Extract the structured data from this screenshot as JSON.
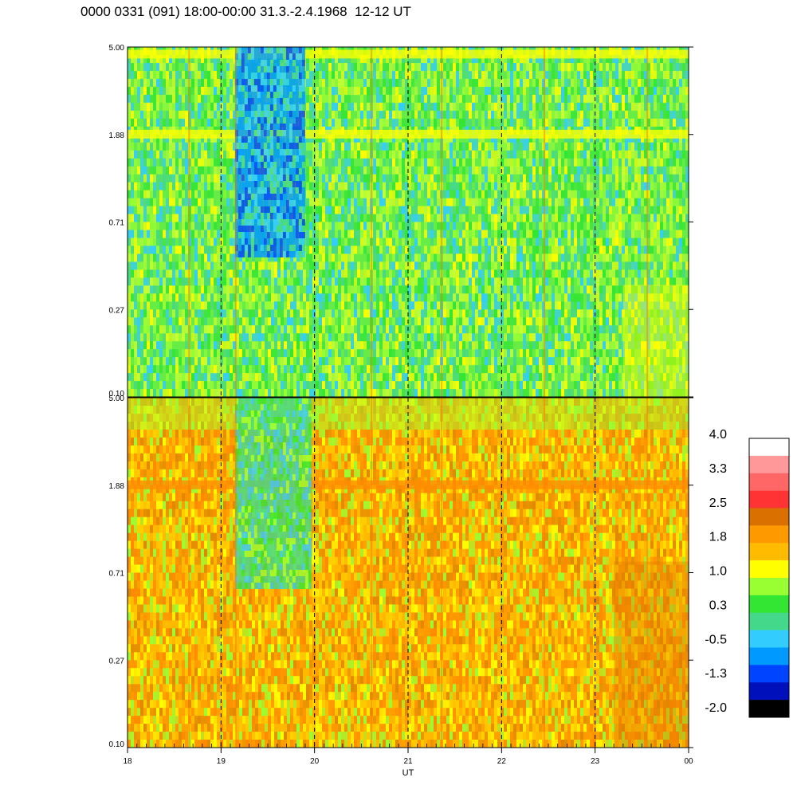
{
  "title": "0000 0331 (091) 18:00-00:00 31.3.-2.4.1968  12-12 UT",
  "chart_data": {
    "type": "heatmap",
    "title": "0000 0331 (091) 18:00-00:00 31.3.-2.4.1968  12-12 UT",
    "xlabel": "UT",
    "x_ticks": [
      "18",
      "19",
      "20",
      "21",
      "22",
      "23",
      "00"
    ],
    "x_range": [
      18,
      24
    ],
    "dashed_hour_lines": [
      19,
      20,
      21,
      22,
      23
    ],
    "panels": [
      {
        "name": "top",
        "y_ticks": [
          "5.00",
          "1.88",
          "0.71",
          "0.27",
          "0.10"
        ],
        "y_range": [
          0.1,
          5.0
        ],
        "y_scale": "log",
        "dominant_levels": "green / yellow-green",
        "bright_bands_at": [
          4.6,
          1.88
        ],
        "depletion_region": {
          "x_start": 19.15,
          "x_end": 19.9,
          "y_low": 0.5,
          "y_high": 5.0,
          "level": "blue"
        }
      },
      {
        "name": "bottom",
        "y_ticks": [
          "5.00",
          "1.88",
          "0.71",
          "0.27",
          "0.10"
        ],
        "y_range": [
          0.1,
          5.0
        ],
        "y_scale": "log",
        "dominant_levels": "orange / yellow",
        "bright_bands_at": [
          1.88
        ],
        "depletion_region": {
          "x_start": 19.15,
          "x_end": 19.95,
          "y_low": 0.6,
          "y_high": 5.0,
          "level": "cyan/green"
        }
      }
    ],
    "colorbar": {
      "labels": [
        "4.0",
        "3.3",
        "2.5",
        "1.8",
        "1.0",
        "0.3",
        "-0.5",
        "-1.3",
        "-2.0"
      ],
      "colors": [
        "#ffffff",
        "#ff9999",
        "#ff6666",
        "#ff3333",
        "#d97000",
        "#ff9900",
        "#ffbb00",
        "#ffff00",
        "#99ff33",
        "#33e633",
        "#44d88a",
        "#33ccff",
        "#0099ff",
        "#0044ff",
        "#0011bb",
        "#000000"
      ]
    }
  }
}
